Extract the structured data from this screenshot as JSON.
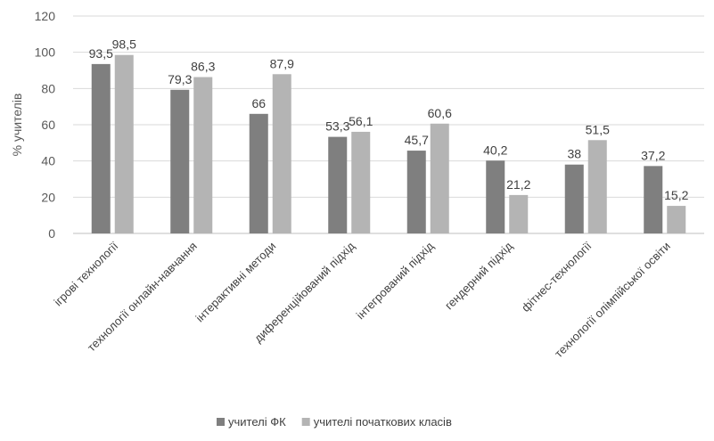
{
  "chart_data": {
    "type": "bar",
    "ylabel": "% учителів",
    "ylim": [
      0,
      120
    ],
    "yticks": [
      0,
      20,
      40,
      60,
      80,
      100,
      120
    ],
    "grid": true,
    "legend_position": "bottom",
    "categories": [
      "ігрові технології",
      "технології онлайн-навчання",
      "інтерактивні методи",
      "диференційований підхід",
      "інтегрований підхід",
      "гендерний підхід",
      "фітнес-технології",
      "технології олімпійської освіти"
    ],
    "series": [
      {
        "name": "учителі ФК",
        "color": "#7f7f7f",
        "values": [
          93.5,
          79.3,
          66,
          53.3,
          45.7,
          40.2,
          38,
          37.2
        ]
      },
      {
        "name": "учителі початкових класів",
        "color": "#b4b4b4",
        "values": [
          98.5,
          86.3,
          87.9,
          56.1,
          60.6,
          21.2,
          51.5,
          15.2
        ]
      }
    ]
  }
}
